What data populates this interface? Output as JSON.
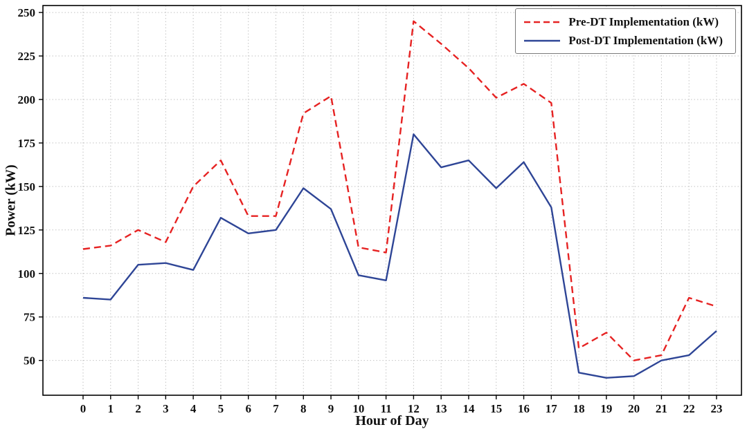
{
  "chart_data": {
    "type": "line",
    "title": "",
    "xlabel": "Hour of Day",
    "ylabel": "Power (kW)",
    "x": [
      0,
      1,
      2,
      3,
      4,
      5,
      6,
      7,
      8,
      9,
      10,
      11,
      12,
      13,
      14,
      15,
      16,
      17,
      18,
      19,
      20,
      21,
      22,
      23
    ],
    "yticks": [
      50,
      75,
      100,
      125,
      150,
      175,
      200,
      225,
      250
    ],
    "ylim": [
      30,
      254
    ],
    "grid": true,
    "legend_position": "top-right",
    "series": [
      {
        "name": "Pre-DT Implementation (kW)",
        "color": "#e62222",
        "style": "dashed",
        "values": [
          114,
          116,
          125,
          118,
          150,
          165,
          133,
          133,
          192,
          202,
          115,
          112,
          245,
          232,
          218,
          201,
          209,
          198,
          57,
          66,
          50,
          53,
          86,
          81
        ]
      },
      {
        "name": "Post-DT Implementation (kW)",
        "color": "#2e4596",
        "style": "solid",
        "values": [
          86,
          85,
          105,
          106,
          102,
          132,
          123,
          125,
          149,
          137,
          99,
          96,
          180,
          161,
          165,
          149,
          164,
          138,
          43,
          40,
          41,
          50,
          53,
          67
        ]
      }
    ]
  }
}
